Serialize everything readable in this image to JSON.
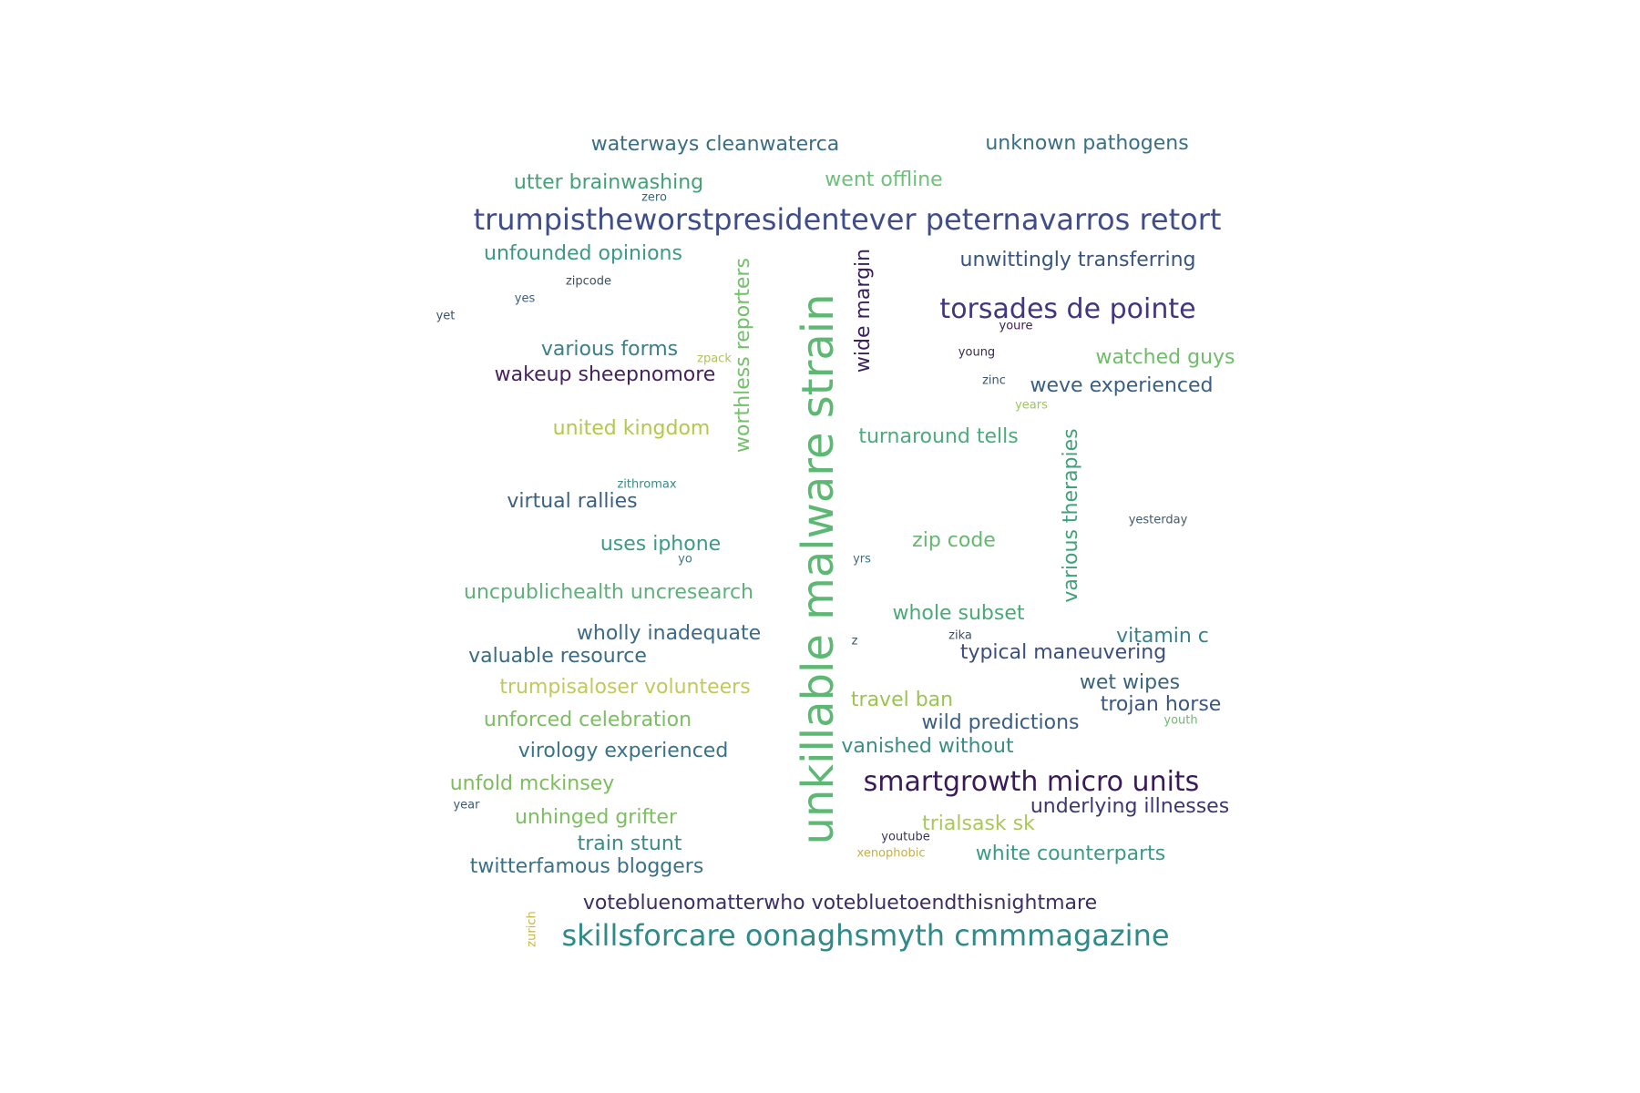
{
  "wordcloud": {
    "words": [
      {
        "text": "unkillable malware strain",
        "color": "#5cb872",
        "rotated": true
      },
      {
        "text": "trumpistheworstpresidentever peternavarros retort",
        "color": "#3f4d8a",
        "rotated": false
      },
      {
        "text": "skillsforcare oonaghsmyth cmmmagazine",
        "color": "#2f8a88",
        "rotated": false
      },
      {
        "text": "smartgrowth micro units",
        "color": "#3b1a5a",
        "rotated": false
      },
      {
        "text": "torsades de pointe",
        "color": "#433580",
        "rotated": false
      },
      {
        "text": "waterways cleanwaterca",
        "color": "#3b6e84",
        "rotated": false
      },
      {
        "text": "unknown pathogens",
        "color": "#3a7086",
        "rotated": false
      },
      {
        "text": "utter brainwashing",
        "color": "#43a078",
        "rotated": false
      },
      {
        "text": "went offline",
        "color": "#6fc07a",
        "rotated": false
      },
      {
        "text": "zero",
        "color": "#36667e",
        "rotated": false
      },
      {
        "text": "unfounded opinions",
        "color": "#3a9a84",
        "rotated": false
      },
      {
        "text": "worthless reporters",
        "color": "#72c06a",
        "rotated": true
      },
      {
        "text": "wide margin",
        "color": "#3a1f5e",
        "rotated": true
      },
      {
        "text": "unwittingly transferring",
        "color": "#38547f",
        "rotated": false
      },
      {
        "text": "zipcode",
        "color": "#3b5060",
        "rotated": false
      },
      {
        "text": "yes",
        "color": "#3e5e80",
        "rotated": false
      },
      {
        "text": "yet",
        "color": "#3e4f70",
        "rotated": false
      },
      {
        "text": "youre",
        "color": "#3d1d52",
        "rotated": false
      },
      {
        "text": "various forms",
        "color": "#3a7f8a",
        "rotated": false
      },
      {
        "text": "zpack",
        "color": "#b2c25a",
        "rotated": false
      },
      {
        "text": "wakeup sheepnomore",
        "color": "#46235f",
        "rotated": false
      },
      {
        "text": "young",
        "color": "#3a2754",
        "rotated": false
      },
      {
        "text": "watched guys",
        "color": "#6fbd6a",
        "rotated": false
      },
      {
        "text": "zinc",
        "color": "#3c5368",
        "rotated": false
      },
      {
        "text": "weve experienced",
        "color": "#3a5f84",
        "rotated": false
      },
      {
        "text": "years",
        "color": "#9ac857",
        "rotated": false
      },
      {
        "text": "united kingdom",
        "color": "#b5c84a",
        "rotated": false
      },
      {
        "text": "turnaround tells",
        "color": "#4bab7c",
        "rotated": false
      },
      {
        "text": "various therapies",
        "color": "#3fa27a",
        "rotated": true
      },
      {
        "text": "zithromax",
        "color": "#3a8a85",
        "rotated": false
      },
      {
        "text": "virtual rallies",
        "color": "#3b6083",
        "rotated": false
      },
      {
        "text": "yesterday",
        "color": "#405a6c",
        "rotated": false
      },
      {
        "text": "uses iphone",
        "color": "#3b9b86",
        "rotated": false
      },
      {
        "text": "zip code",
        "color": "#65b870",
        "rotated": false
      },
      {
        "text": "yo",
        "color": "#3c7884",
        "rotated": false
      },
      {
        "text": "yrs",
        "color": "#3d6d84",
        "rotated": false
      },
      {
        "text": "uncpublichealth uncresearch",
        "color": "#5fb07a",
        "rotated": false
      },
      {
        "text": "whole subset",
        "color": "#4aaa76",
        "rotated": false
      },
      {
        "text": "wholly inadequate",
        "color": "#3d6a87",
        "rotated": false
      },
      {
        "text": "z",
        "color": "#3c5266",
        "rotated": false
      },
      {
        "text": "zika",
        "color": "#3c4e6a",
        "rotated": false
      },
      {
        "text": "vitamin c",
        "color": "#3a8088",
        "rotated": false
      },
      {
        "text": "valuable resource",
        "color": "#3a6a84",
        "rotated": false
      },
      {
        "text": "typical maneuvering",
        "color": "#3c4d80",
        "rotated": false
      },
      {
        "text": "trumpisaloser volunteers",
        "color": "#c0c95a",
        "rotated": false
      },
      {
        "text": "wet wipes",
        "color": "#3a647e",
        "rotated": false
      },
      {
        "text": "travel ban",
        "color": "#9bc452",
        "rotated": false
      },
      {
        "text": "trojan horse",
        "color": "#3c5682",
        "rotated": false
      },
      {
        "text": "unforced celebration",
        "color": "#7dbd63",
        "rotated": false
      },
      {
        "text": "wild predictions",
        "color": "#3a5d84",
        "rotated": false
      },
      {
        "text": "youth",
        "color": "#72b870",
        "rotated": false
      },
      {
        "text": "vanished without",
        "color": "#3a8c86",
        "rotated": false
      },
      {
        "text": "virology experienced",
        "color": "#3a7388",
        "rotated": false
      },
      {
        "text": "unfold mckinsey",
        "color": "#7cbd5c",
        "rotated": false
      },
      {
        "text": "year",
        "color": "#3c5a74",
        "rotated": false
      },
      {
        "text": "underlying illnesses",
        "color": "#3c3674",
        "rotated": false
      },
      {
        "text": "unhinged grifter",
        "color": "#7cbf62",
        "rotated": false
      },
      {
        "text": "trialsask sk",
        "color": "#a9c858",
        "rotated": false
      },
      {
        "text": "youtube",
        "color": "#3c3356",
        "rotated": false
      },
      {
        "text": "train stunt",
        "color": "#3a8a86",
        "rotated": false
      },
      {
        "text": "xenophobic",
        "color": "#c4b140",
        "rotated": false
      },
      {
        "text": "white counterparts",
        "color": "#3a9a84",
        "rotated": false
      },
      {
        "text": "twitterfamous bloggers",
        "color": "#3a7186",
        "rotated": false
      },
      {
        "text": "zurich",
        "color": "#c6b648",
        "rotated": true
      },
      {
        "text": "votebluenomatterwho votebluеtoendthisnightmare",
        "color": "#3c2e66",
        "rotated": false
      }
    ]
  }
}
